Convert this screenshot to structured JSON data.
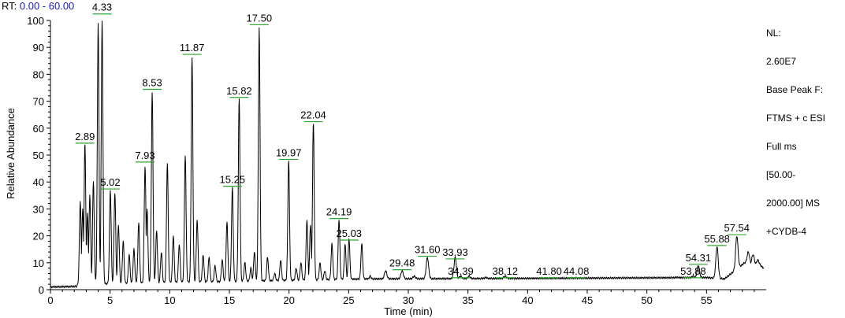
{
  "header": {
    "rt_prefix": "RT:",
    "rt_range": "0.00 - 60.00"
  },
  "info": {
    "lines": [
      "NL:",
      "2.60E7",
      "Base Peak F:",
      "FTMS + c ESI",
      "Full ms",
      "[50.00-",
      "2000.00] MS",
      "+CYDB-4"
    ]
  },
  "colors": {
    "trace": "#000000",
    "peak_marker": "#2ea52e",
    "rt_value": "#1a1ab0"
  },
  "chart_data": {
    "type": "line",
    "xlabel": "Time (min)",
    "ylabel": "Relative Abundance",
    "xlim": [
      0,
      60
    ],
    "ylim": [
      0,
      100
    ],
    "xticks": [
      0,
      5,
      10,
      15,
      20,
      25,
      30,
      35,
      40,
      45,
      50,
      55
    ],
    "yticks": [
      0,
      10,
      20,
      30,
      40,
      50,
      60,
      70,
      80,
      90,
      100
    ],
    "peaks": [
      {
        "rt": 2.89,
        "label": "2.89",
        "height": 54,
        "label_y": 55
      },
      {
        "rt": 4.33,
        "label": "4.33",
        "height": 100,
        "label_y": 103
      },
      {
        "rt": 5.02,
        "label": "5.02",
        "height": 37,
        "label_y": 38
      },
      {
        "rt": 7.93,
        "label": "7.93",
        "height": 46,
        "label_y": 48
      },
      {
        "rt": 8.53,
        "label": "8.53",
        "height": 73,
        "label_y": 75
      },
      {
        "rt": 11.87,
        "label": "11.87",
        "height": 86,
        "label_y": 88
      },
      {
        "rt": 15.25,
        "label": "15.25",
        "height": 38,
        "label_y": 39
      },
      {
        "rt": 15.82,
        "label": "15.82",
        "height": 71,
        "label_y": 72
      },
      {
        "rt": 17.5,
        "label": "17.50",
        "height": 97,
        "label_y": 99
      },
      {
        "rt": 19.97,
        "label": "19.97",
        "height": 48,
        "label_y": 49
      },
      {
        "rt": 22.04,
        "label": "22.04",
        "height": 62,
        "label_y": 63
      },
      {
        "rt": 24.19,
        "label": "24.19",
        "height": 26,
        "label_y": 27
      },
      {
        "rt": 25.03,
        "label": "25.03",
        "height": 19,
        "label_y": 19
      },
      {
        "rt": 29.48,
        "label": "29.48",
        "height": 7,
        "label_y": 8
      },
      {
        "rt": 31.6,
        "label": "31.60",
        "height": 12,
        "label_y": 13
      },
      {
        "rt": 33.93,
        "label": "33.93",
        "height": 12,
        "label_y": 12
      },
      {
        "rt": 34.39,
        "label": "34.39",
        "height": 5,
        "label_y": 5
      },
      {
        "rt": 38.12,
        "label": "38.12",
        "height": 5,
        "label_y": 5
      },
      {
        "rt": 41.8,
        "label": "41.80",
        "height": 4,
        "label_y": 5
      },
      {
        "rt": 44.08,
        "label": "44.08",
        "height": 4,
        "label_y": 5
      },
      {
        "rt": 53.88,
        "label": "53.88",
        "height": 5,
        "label_y": 5
      },
      {
        "rt": 54.31,
        "label": "54.31",
        "height": 9,
        "label_y": 10
      },
      {
        "rt": 55.88,
        "label": "55.88",
        "height": 16,
        "label_y": 17
      },
      {
        "rt": 57.54,
        "label": "57.54",
        "height": 20,
        "label_y": 21
      }
    ],
    "minor_peaks": [
      {
        "rt": 2.5,
        "height": 33
      },
      {
        "rt": 2.7,
        "height": 30
      },
      {
        "rt": 3.1,
        "height": 28
      },
      {
        "rt": 3.3,
        "height": 35
      },
      {
        "rt": 3.6,
        "height": 40
      },
      {
        "rt": 4.0,
        "height": 99
      },
      {
        "rt": 5.4,
        "height": 36
      },
      {
        "rt": 5.7,
        "height": 24
      },
      {
        "rt": 6.1,
        "height": 18
      },
      {
        "rt": 6.6,
        "height": 13
      },
      {
        "rt": 7.0,
        "height": 15
      },
      {
        "rt": 7.4,
        "height": 25
      },
      {
        "rt": 8.1,
        "height": 30
      },
      {
        "rt": 8.9,
        "height": 22
      },
      {
        "rt": 9.3,
        "height": 14
      },
      {
        "rt": 9.8,
        "height": 47
      },
      {
        "rt": 10.3,
        "height": 20
      },
      {
        "rt": 10.8,
        "height": 17
      },
      {
        "rt": 11.3,
        "height": 50
      },
      {
        "rt": 12.3,
        "height": 26
      },
      {
        "rt": 12.8,
        "height": 13
      },
      {
        "rt": 13.3,
        "height": 12
      },
      {
        "rt": 13.8,
        "height": 9
      },
      {
        "rt": 14.4,
        "height": 11
      },
      {
        "rt": 14.8,
        "height": 25
      },
      {
        "rt": 16.3,
        "height": 10
      },
      {
        "rt": 16.8,
        "height": 8
      },
      {
        "rt": 17.1,
        "height": 14
      },
      {
        "rt": 18.2,
        "height": 12
      },
      {
        "rt": 18.8,
        "height": 6
      },
      {
        "rt": 19.3,
        "height": 11
      },
      {
        "rt": 20.6,
        "height": 8
      },
      {
        "rt": 21.0,
        "height": 10
      },
      {
        "rt": 21.5,
        "height": 26
      },
      {
        "rt": 21.8,
        "height": 24
      },
      {
        "rt": 22.6,
        "height": 10
      },
      {
        "rt": 23.0,
        "height": 7
      },
      {
        "rt": 23.6,
        "height": 17
      },
      {
        "rt": 24.7,
        "height": 17
      },
      {
        "rt": 26.1,
        "height": 17
      },
      {
        "rt": 26.8,
        "height": 5
      },
      {
        "rt": 28.1,
        "height": 7
      },
      {
        "rt": 30.5,
        "height": 5
      },
      {
        "rt": 35.1,
        "height": 5
      },
      {
        "rt": 36.5,
        "height": 4.5
      },
      {
        "rt": 45.5,
        "height": 4.3
      },
      {
        "rt": 47.2,
        "height": 4.2
      },
      {
        "rt": 52.5,
        "height": 4.6
      },
      {
        "rt": 58.5,
        "height": 14
      },
      {
        "rt": 58.9,
        "height": 13
      },
      {
        "rt": 59.3,
        "height": 11
      }
    ],
    "baseline": [
      [
        0,
        1
      ],
      [
        2.2,
        1.2
      ],
      [
        2.3,
        2
      ],
      [
        26.5,
        4
      ],
      [
        40,
        4.2
      ],
      [
        55,
        4.5
      ],
      [
        56.5,
        4
      ],
      [
        58.2,
        10
      ],
      [
        59.5,
        9
      ],
      [
        59.8,
        8
      ]
    ]
  }
}
